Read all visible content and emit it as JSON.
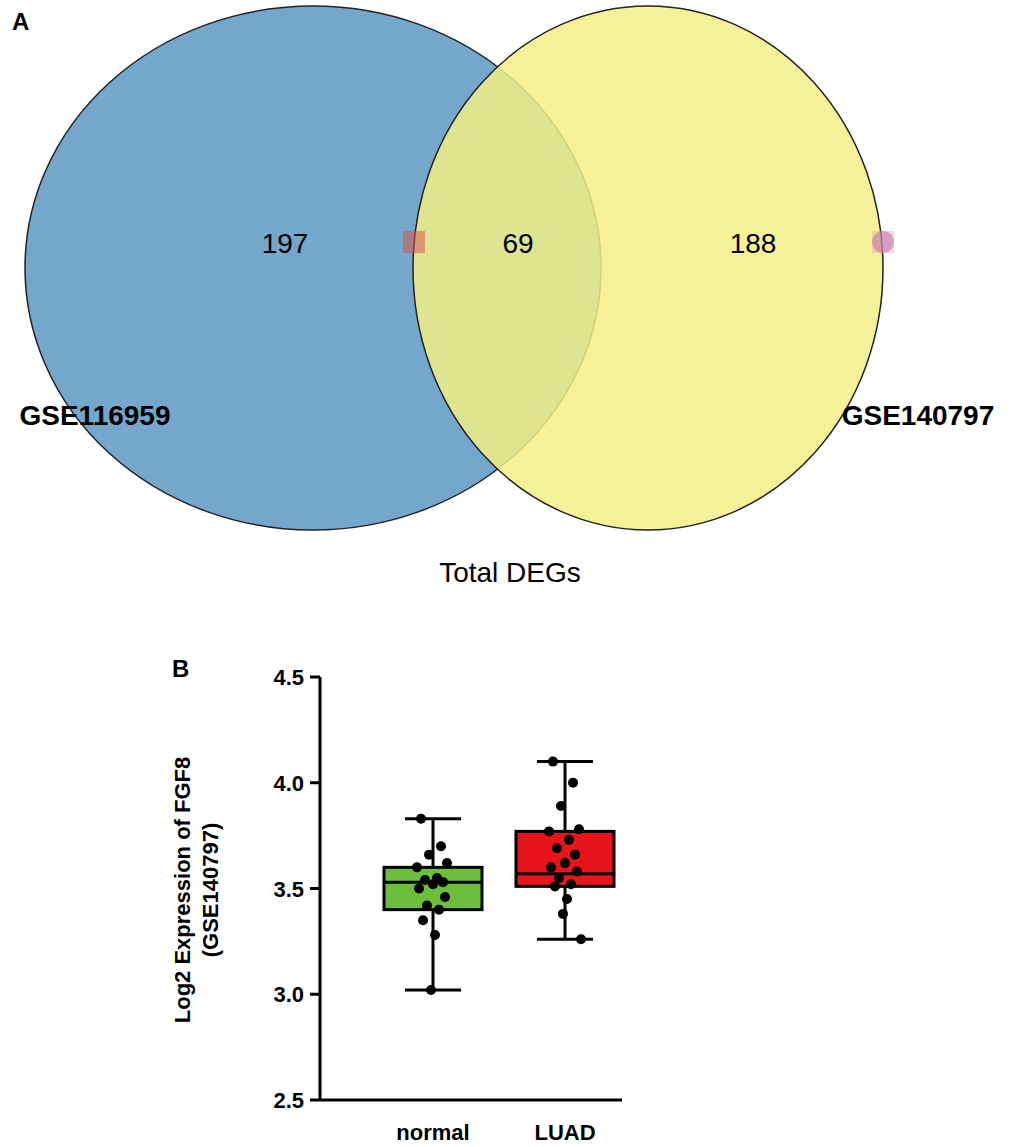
{
  "chart_data": [
    {
      "type": "venn",
      "panel": "A",
      "caption": "Total DEGs",
      "sets": [
        {
          "name": "GSE116959",
          "color": "#74a7cb",
          "value": 197
        },
        {
          "name": "GSE140797",
          "color": "#f2ee87",
          "value": 188
        }
      ],
      "intersection": 69
    },
    {
      "type": "box",
      "panel": "B",
      "ylabel": [
        "Log2 Expression of FGF8",
        "(GSE140797)"
      ],
      "categories": [
        "normal",
        "LUAD"
      ],
      "colors": [
        "#6cbf3c",
        "#e8141b"
      ],
      "ylim": [
        2.5,
        4.5
      ],
      "yticks": [
        2.5,
        {
          "value": 3,
          "label": "3.0"
        },
        3.5,
        {
          "value": 4,
          "label": "4.0"
        },
        4.5
      ],
      "boxes": [
        {
          "min": 3.02,
          "q1": 3.4,
          "median": 3.53,
          "q3": 3.6,
          "max": 3.83,
          "points": [
            3.83,
            3.7,
            3.66,
            3.62,
            3.6,
            3.55,
            3.54,
            3.53,
            3.52,
            3.5,
            3.46,
            3.42,
            3.4,
            3.35,
            3.28,
            3.02
          ]
        },
        {
          "min": 3.26,
          "q1": 3.51,
          "median": 3.57,
          "q3": 3.77,
          "max": 4.1,
          "points": [
            4.1,
            4.0,
            3.89,
            3.78,
            3.77,
            3.73,
            3.69,
            3.66,
            3.62,
            3.6,
            3.58,
            3.55,
            3.52,
            3.51,
            3.45,
            3.38,
            3.26
          ]
        }
      ]
    }
  ]
}
